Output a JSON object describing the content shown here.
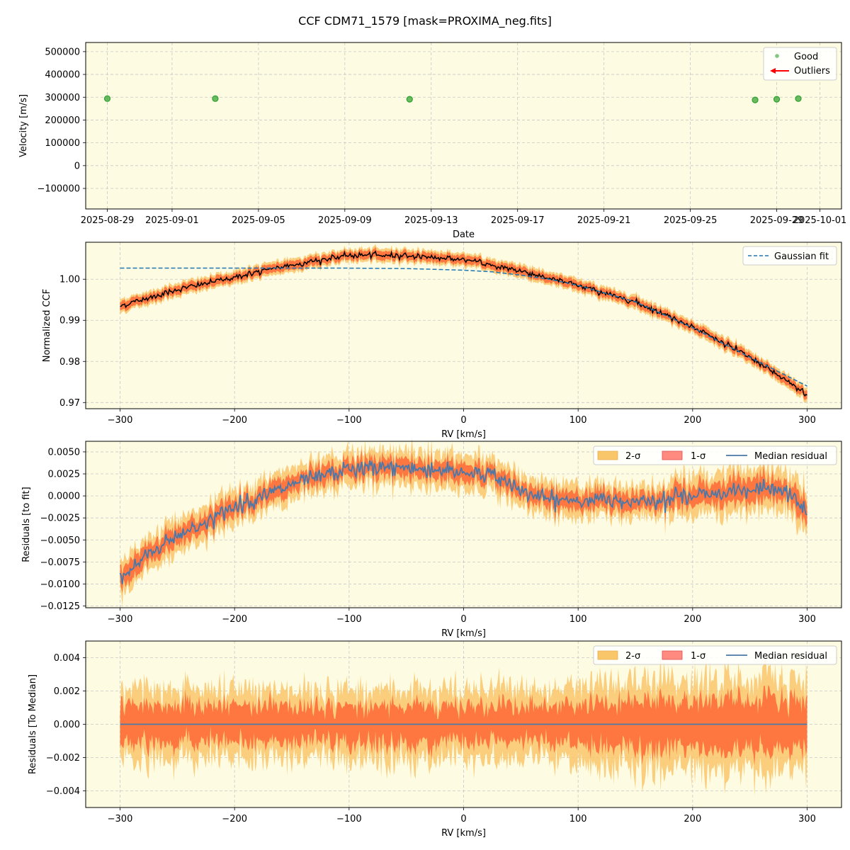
{
  "figure": {
    "title": "CCF CDM71_1579 [mask=PROXIMA_neg.fits]"
  },
  "colors": {
    "facecolor": "#fdfbe2",
    "good": "#2ca02c",
    "outlier_arrow": "#ff0000",
    "ccf_line": "#000000",
    "fit_line": "#1f77b4",
    "band_2sigma": "#f9c66a",
    "band_1sigma": "#ff5a2c",
    "median_line": "#4a78a8",
    "grid": "#c8c8c8"
  },
  "chart_data": [
    {
      "id": "velocity",
      "type": "scatter",
      "xlabel": "Date",
      "ylabel": "Velocity [m/s]",
      "x_type": "date",
      "xlim": [
        "2025-08-28",
        "2025-10-02"
      ],
      "ylim": [
        -190000,
        540000
      ],
      "xticks": [
        "2025-08-29",
        "2025-09-01",
        "2025-09-05",
        "2025-09-09",
        "2025-09-13",
        "2025-09-17",
        "2025-09-21",
        "2025-09-25",
        "2025-09-29",
        "2025-10-01"
      ],
      "yticks": [
        -100000,
        0,
        100000,
        200000,
        300000,
        400000,
        500000
      ],
      "ytick_labels": [
        "−100000",
        "0",
        "100000",
        "200000",
        "300000",
        "400000",
        "500000"
      ],
      "grid": true,
      "legend": {
        "position": "top-right",
        "entries": [
          "Good",
          "Outliers"
        ]
      },
      "series": [
        {
          "name": "Good",
          "points": [
            {
              "x": "2025-08-29",
              "y": 294000
            },
            {
              "x": "2025-09-03",
              "y": 294000
            },
            {
              "x": "2025-09-12",
              "y": 291000
            },
            {
              "x": "2025-09-28",
              "y": 288000
            },
            {
              "x": "2025-09-29",
              "y": 291000
            },
            {
              "x": "2025-09-30",
              "y": 294000
            }
          ]
        },
        {
          "name": "Outliers",
          "points": []
        }
      ]
    },
    {
      "id": "ccf",
      "type": "line",
      "xlabel": "RV [km/s]",
      "ylabel": "Normalized CCF",
      "xlim": [
        -330,
        330
      ],
      "ylim": [
        0.9685,
        1.009
      ],
      "xticks": [
        -300,
        -200,
        -100,
        0,
        100,
        200,
        300
      ],
      "xtick_labels": [
        "−300",
        "−200",
        "−100",
        "0",
        "100",
        "200",
        "300"
      ],
      "yticks": [
        0.97,
        0.98,
        0.99,
        1.0
      ],
      "ytick_labels": [
        "0.97",
        "0.98",
        "0.99",
        "1.00"
      ],
      "grid": true,
      "legend": {
        "position": "top-right",
        "entries": [
          "Gaussian fit"
        ]
      },
      "series": [
        {
          "name": "",
          "kind": "ccf",
          "x": [
            -300,
            -250,
            -200,
            -150,
            -100,
            -50,
            0,
            50,
            100,
            150,
            200,
            250,
            300
          ],
          "y": [
            0.9935,
            0.9975,
            1.0005,
            1.0035,
            1.0058,
            1.0058,
            1.0048,
            1.002,
            0.9985,
            0.9945,
            0.9885,
            0.981,
            0.972
          ]
        },
        {
          "name": "Gaussian fit",
          "kind": "fit",
          "x": [
            -300,
            -200,
            -100,
            -50,
            0,
            25,
            50,
            75,
            100,
            150,
            200,
            250,
            300
          ],
          "y": [
            1.0027,
            1.0027,
            1.0027,
            1.0026,
            1.0022,
            1.0018,
            1.001,
            1.0,
            0.9985,
            0.9945,
            0.9882,
            0.981,
            0.974
          ]
        }
      ]
    },
    {
      "id": "resid_fit",
      "type": "line",
      "xlabel": "RV [km/s]",
      "ylabel": "Residuals [to fit]",
      "xlim": [
        -330,
        330
      ],
      "ylim": [
        -0.0127,
        0.0062
      ],
      "xticks": [
        -300,
        -200,
        -100,
        0,
        100,
        200,
        300
      ],
      "xtick_labels": [
        "−300",
        "−200",
        "−100",
        "0",
        "100",
        "200",
        "300"
      ],
      "yticks": [
        -0.0125,
        -0.01,
        -0.0075,
        -0.005,
        -0.0025,
        0.0,
        0.0025,
        0.005
      ],
      "ytick_labels": [
        "−0.0125",
        "−0.0100",
        "−0.0075",
        "−0.0050",
        "−0.0025",
        "0.0000",
        "0.0025",
        "0.0050"
      ],
      "grid": true,
      "legend": {
        "position": "top-right",
        "entries": [
          "2-σ",
          "1-σ",
          "Median residual"
        ]
      },
      "series": [
        {
          "name": "Median residual",
          "x": [
            -300,
            -275,
            -250,
            -225,
            -200,
            -175,
            -150,
            -125,
            -100,
            -75,
            -50,
            -25,
            0,
            20,
            40,
            60,
            80,
            100,
            150,
            200,
            250,
            280,
            300
          ],
          "y": [
            -0.0095,
            -0.0065,
            -0.0045,
            -0.003,
            -0.0012,
            0.0,
            0.0012,
            0.0022,
            0.003,
            0.0032,
            0.0032,
            0.003,
            0.0027,
            0.0025,
            0.0015,
            0.0,
            -0.0005,
            -0.0005,
            -0.0005,
            0.0,
            0.0008,
            0.0005,
            -0.0015
          ]
        }
      ],
      "band_1sigma_halfwidth": 0.001,
      "band_2sigma_halfwidth": 0.0017
    },
    {
      "id": "resid_median",
      "type": "line",
      "xlabel": "RV [km/s]",
      "ylabel": "Residuals [To Median]",
      "xlim": [
        -330,
        330
      ],
      "ylim": [
        -0.005,
        0.005
      ],
      "xticks": [
        -300,
        -200,
        -100,
        0,
        100,
        200,
        300
      ],
      "xtick_labels": [
        "−300",
        "−200",
        "−100",
        "0",
        "100",
        "200",
        "300"
      ],
      "yticks": [
        -0.004,
        -0.002,
        0.0,
        0.002,
        0.004
      ],
      "ytick_labels": [
        "−0.004",
        "−0.002",
        "0.000",
        "0.002",
        "0.004"
      ],
      "grid": true,
      "legend": {
        "position": "top-right",
        "entries": [
          "2-σ",
          "1-σ",
          "Median residual"
        ]
      },
      "series": [
        {
          "name": "Median residual",
          "x": [
            -300,
            300
          ],
          "y": [
            0.0,
            0.0
          ]
        }
      ],
      "band_1sigma_halfwidth": 0.0011,
      "band_2sigma_halfwidth": 0.0018
    }
  ]
}
